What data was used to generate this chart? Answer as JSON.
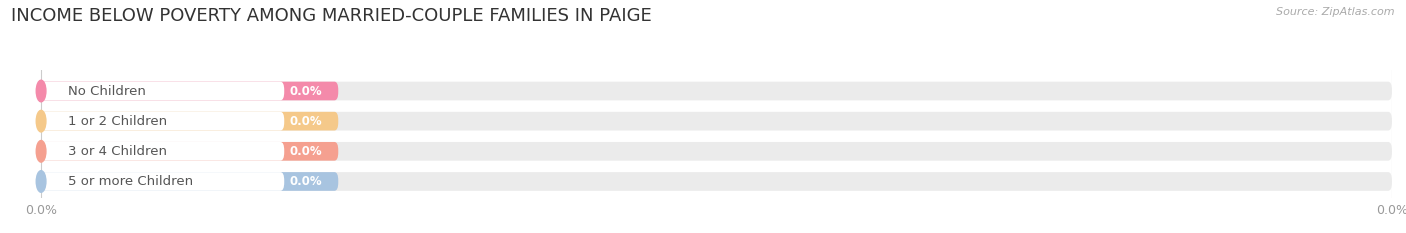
{
  "title": "INCOME BELOW POVERTY AMONG MARRIED-COUPLE FAMILIES IN PAIGE",
  "source": "Source: ZipAtlas.com",
  "categories": [
    "No Children",
    "1 or 2 Children",
    "3 or 4 Children",
    "5 or more Children"
  ],
  "values": [
    0.0,
    0.0,
    0.0,
    0.0
  ],
  "bar_colors": [
    "#f48aaa",
    "#f5c98a",
    "#f5a090",
    "#a8c4e0"
  ],
  "background_color": "#ffffff",
  "bar_bg_color": "#ebebeb",
  "bar_white_color": "#ffffff",
  "title_fontsize": 13,
  "label_fontsize": 9.5,
  "value_fontsize": 8.5,
  "source_fontsize": 8,
  "x_tick_label": "0.0%",
  "x_tick_positions": [
    0.0,
    100.0
  ],
  "grid_color": "#cccccc",
  "label_color": "#555555",
  "value_text_color": "#ffffff",
  "tick_label_color": "#999999"
}
